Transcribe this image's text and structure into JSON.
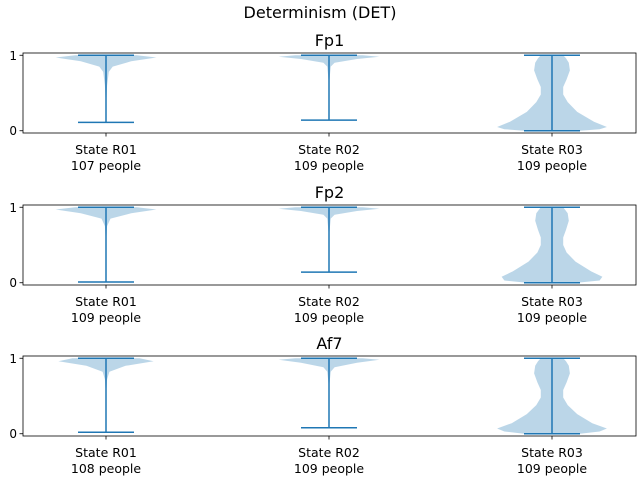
{
  "figure_title": "Determinism (DET)",
  "colors": {
    "violin_fill": "#1f77b4",
    "violin_alpha": 0.3,
    "whisker": "#1f77b4",
    "axes": "#000000"
  },
  "chart_data": [
    {
      "type": "violin",
      "title": "Fp1",
      "ylim": [
        -0.03,
        1.03
      ],
      "yticks": [
        "0",
        "1"
      ],
      "grid": false,
      "categories": [
        "State R01\n107 people",
        "State R02\n109 people",
        "State R03\n109 people"
      ],
      "series": [
        {
          "category": "State R01\n107 people",
          "min": 0.11,
          "max": 1.0,
          "profile": [
            [
              0.11,
              0.0
            ],
            [
              0.3,
              0.0
            ],
            [
              0.6,
              0.02
            ],
            [
              0.78,
              0.05
            ],
            [
              0.85,
              0.12
            ],
            [
              0.92,
              0.45
            ],
            [
              0.97,
              0.9
            ],
            [
              1.0,
              0.55
            ]
          ]
        },
        {
          "category": "State R02\n109 people",
          "min": 0.14,
          "max": 1.0,
          "profile": [
            [
              0.14,
              0.0
            ],
            [
              0.6,
              0.0
            ],
            [
              0.85,
              0.03
            ],
            [
              0.9,
              0.1
            ],
            [
              0.95,
              0.5
            ],
            [
              0.98,
              0.9
            ],
            [
              1.0,
              0.6
            ]
          ]
        },
        {
          "category": "State R03\n109 people",
          "min": 0.0,
          "max": 1.0,
          "profile": [
            [
              0.0,
              0.5
            ],
            [
              0.02,
              0.85
            ],
            [
              0.05,
              0.98
            ],
            [
              0.12,
              0.75
            ],
            [
              0.25,
              0.45
            ],
            [
              0.38,
              0.28
            ],
            [
              0.48,
              0.2
            ],
            [
              0.58,
              0.2
            ],
            [
              0.68,
              0.26
            ],
            [
              0.8,
              0.32
            ],
            [
              0.9,
              0.3
            ],
            [
              0.96,
              0.25
            ],
            [
              1.0,
              0.2
            ]
          ]
        }
      ]
    },
    {
      "type": "violin",
      "title": "Fp2",
      "ylim": [
        -0.03,
        1.03
      ],
      "yticks": [
        "0",
        "1"
      ],
      "grid": false,
      "categories": [
        "State R01\n109 people",
        "State R02\n109 people",
        "State R03\n109 people"
      ],
      "series": [
        {
          "category": "State R01\n109 people",
          "min": 0.01,
          "max": 1.0,
          "profile": [
            [
              0.01,
              0.0
            ],
            [
              0.5,
              0.0
            ],
            [
              0.75,
              0.02
            ],
            [
              0.85,
              0.08
            ],
            [
              0.92,
              0.45
            ],
            [
              0.97,
              0.9
            ],
            [
              1.0,
              0.55
            ]
          ]
        },
        {
          "category": "State R02\n109 people",
          "min": 0.14,
          "max": 1.0,
          "profile": [
            [
              0.14,
              0.0
            ],
            [
              0.6,
              0.0
            ],
            [
              0.85,
              0.03
            ],
            [
              0.9,
              0.1
            ],
            [
              0.95,
              0.5
            ],
            [
              0.98,
              0.9
            ],
            [
              1.0,
              0.6
            ]
          ]
        },
        {
          "category": "State R03\n109 people",
          "min": 0.0,
          "max": 1.0,
          "profile": [
            [
              0.0,
              0.45
            ],
            [
              0.03,
              0.85
            ],
            [
              0.08,
              0.9
            ],
            [
              0.15,
              0.7
            ],
            [
              0.28,
              0.42
            ],
            [
              0.4,
              0.26
            ],
            [
              0.5,
              0.2
            ],
            [
              0.6,
              0.2
            ],
            [
              0.7,
              0.25
            ],
            [
              0.82,
              0.3
            ],
            [
              0.92,
              0.28
            ],
            [
              1.0,
              0.2
            ]
          ]
        }
      ]
    },
    {
      "type": "violin",
      "title": "Af7",
      "ylim": [
        -0.03,
        1.03
      ],
      "yticks": [
        "0",
        "1"
      ],
      "grid": false,
      "categories": [
        "State R01\n108 people",
        "State R02\n109 people",
        "State R03\n109 people"
      ],
      "series": [
        {
          "category": "State R01\n108 people",
          "min": 0.02,
          "max": 1.0,
          "profile": [
            [
              0.02,
              0.0
            ],
            [
              0.5,
              0.0
            ],
            [
              0.72,
              0.02
            ],
            [
              0.82,
              0.06
            ],
            [
              0.9,
              0.35
            ],
            [
              0.96,
              0.85
            ],
            [
              1.0,
              0.6
            ]
          ]
        },
        {
          "category": "State R02\n109 people",
          "min": 0.08,
          "max": 1.0,
          "profile": [
            [
              0.08,
              0.0
            ],
            [
              0.6,
              0.0
            ],
            [
              0.82,
              0.03
            ],
            [
              0.88,
              0.1
            ],
            [
              0.94,
              0.5
            ],
            [
              0.98,
              0.9
            ],
            [
              1.0,
              0.6
            ]
          ]
        },
        {
          "category": "State R03\n109 people",
          "min": 0.0,
          "max": 1.0,
          "profile": [
            [
              0.0,
              0.5
            ],
            [
              0.03,
              0.85
            ],
            [
              0.07,
              0.98
            ],
            [
              0.14,
              0.72
            ],
            [
              0.26,
              0.45
            ],
            [
              0.38,
              0.28
            ],
            [
              0.48,
              0.2
            ],
            [
              0.58,
              0.2
            ],
            [
              0.68,
              0.26
            ],
            [
              0.8,
              0.32
            ],
            [
              0.9,
              0.3
            ],
            [
              0.96,
              0.25
            ],
            [
              1.0,
              0.2
            ]
          ]
        }
      ]
    }
  ]
}
